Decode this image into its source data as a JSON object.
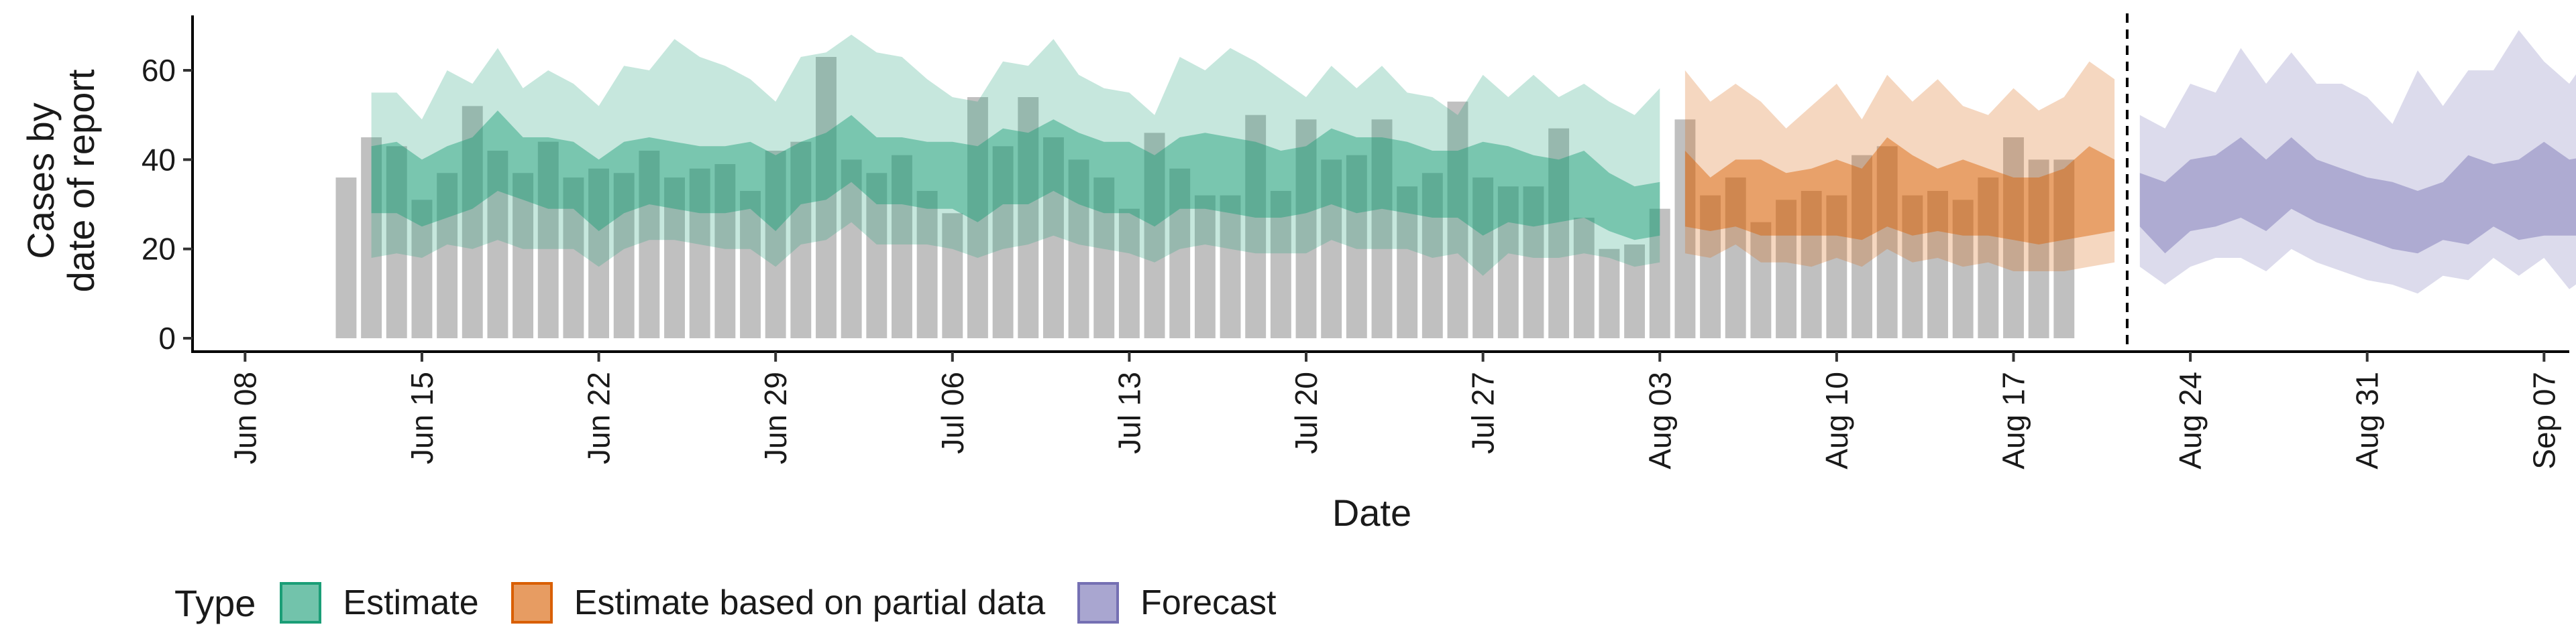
{
  "chart_data": {
    "type": "bar",
    "xlabel": "Date",
    "ylabel": [
      "Cases by",
      "date of report"
    ],
    "ylim": [
      0,
      72
    ],
    "yticks": [
      0,
      20,
      40,
      60
    ],
    "xlim": [
      "2020-06-06",
      "2020-09-08"
    ],
    "xticks": [
      "2020-06-08",
      "2020-06-15",
      "2020-06-22",
      "2020-06-29",
      "2020-07-06",
      "2020-07-13",
      "2020-07-20",
      "2020-07-27",
      "2020-08-03",
      "2020-08-10",
      "2020-08-17",
      "2020-08-24",
      "2020-08-31",
      "2020-09-07"
    ],
    "xtick_labels": [
      "Jun 08",
      "Jun 15",
      "Jun 22",
      "Jun 29",
      "Jul 06",
      "Jul 13",
      "Jul 20",
      "Jul 27",
      "Aug 03",
      "Aug 10",
      "Aug 17",
      "Aug 24",
      "Aug 31",
      "Sep 07"
    ],
    "grid": false,
    "vline_date": "2020-08-21",
    "bars": {
      "start_date": "2020-06-12",
      "values": [
        36,
        45,
        43,
        31,
        37,
        52,
        42,
        37,
        44,
        36,
        38,
        37,
        42,
        36,
        38,
        39,
        33,
        42,
        44,
        63,
        40,
        37,
        41,
        33,
        28,
        54,
        43,
        54,
        45,
        40,
        36,
        29,
        46,
        38,
        32,
        32,
        50,
        33,
        49,
        40,
        41,
        49,
        34,
        37,
        53,
        36,
        34,
        34,
        47,
        27,
        20,
        21,
        29,
        49,
        32,
        36,
        26,
        31,
        33,
        32,
        41,
        43,
        32,
        33,
        31,
        36,
        45,
        40,
        40
      ]
    },
    "series": [
      {
        "name": "Estimate",
        "color": "#1b9e77",
        "start_date": "2020-06-13",
        "median": [
          35,
          37,
          34,
          38,
          38,
          41,
          38,
          37,
          38,
          34,
          37,
          39,
          37,
          36,
          36,
          37,
          34,
          37,
          40,
          42,
          38,
          38,
          37,
          37,
          36,
          39,
          38,
          41,
          38,
          37,
          36,
          34,
          37,
          37,
          36,
          35,
          34,
          35,
          38,
          36,
          36,
          35,
          34,
          34,
          34,
          34,
          33,
          32,
          33,
          30,
          28,
          29
        ],
        "inner_low": [
          28,
          28,
          25,
          27,
          29,
          33,
          31,
          29,
          29,
          24,
          28,
          30,
          29,
          28,
          28,
          29,
          24,
          30,
          31,
          35,
          30,
          30,
          29,
          29,
          26,
          30,
          30,
          33,
          30,
          28,
          28,
          25,
          29,
          29,
          28,
          27,
          27,
          28,
          30,
          28,
          29,
          28,
          27,
          27,
          23,
          26,
          25,
          26,
          27,
          24,
          22,
          23
        ],
        "inner_high": [
          43,
          44,
          40,
          43,
          45,
          51,
          45,
          45,
          44,
          40,
          44,
          45,
          44,
          43,
          43,
          44,
          41,
          44,
          46,
          50,
          45,
          45,
          44,
          44,
          43,
          47,
          46,
          49,
          46,
          44,
          44,
          41,
          45,
          46,
          45,
          44,
          42,
          43,
          47,
          45,
          45,
          44,
          42,
          42,
          44,
          43,
          41,
          40,
          42,
          37,
          34,
          35
        ],
        "outer_low": [
          18,
          19,
          18,
          21,
          20,
          22,
          20,
          20,
          20,
          16,
          20,
          22,
          22,
          21,
          20,
          20,
          16,
          21,
          22,
          26,
          21,
          21,
          21,
          20,
          18,
          20,
          21,
          23,
          21,
          20,
          19,
          17,
          20,
          21,
          20,
          19,
          19,
          19,
          22,
          20,
          20,
          20,
          18,
          19,
          14,
          19,
          18,
          18,
          19,
          18,
          16,
          17
        ],
        "outer_high": [
          55,
          55,
          49,
          60,
          57,
          65,
          56,
          60,
          57,
          52,
          61,
          60,
          67,
          63,
          61,
          58,
          53,
          63,
          64,
          68,
          64,
          63,
          58,
          54,
          53,
          62,
          61,
          67,
          59,
          56,
          55,
          50,
          63,
          60,
          65,
          62,
          58,
          54,
          61,
          56,
          61,
          55,
          54,
          50,
          59,
          54,
          59,
          54,
          57,
          53,
          50,
          56
        ]
      },
      {
        "name": "Estimate based on partial data",
        "color": "#d95f02",
        "start_date": "2020-08-04",
        "median": [
          32,
          31,
          33,
          31,
          30,
          29,
          30,
          29,
          32,
          30,
          31,
          31,
          30,
          30,
          29,
          30,
          31,
          32
        ],
        "inner_low": [
          25,
          24,
          25,
          23,
          23,
          23,
          23,
          22,
          25,
          23,
          24,
          23,
          23,
          22,
          21,
          22,
          23,
          24
        ],
        "inner_high": [
          42,
          36,
          40,
          40,
          37,
          38,
          40,
          38,
          45,
          41,
          38,
          40,
          38,
          36,
          36,
          38,
          43,
          40
        ],
        "outer_low": [
          19,
          18,
          21,
          17,
          17,
          16,
          18,
          16,
          20,
          17,
          18,
          16,
          17,
          15,
          15,
          15,
          16,
          17
        ],
        "outer_high": [
          60,
          53,
          57,
          53,
          47,
          52,
          57,
          49,
          59,
          53,
          58,
          52,
          50,
          56,
          51,
          54,
          62,
          58
        ]
      },
      {
        "name": "Forecast",
        "color": "#7570b3",
        "start_date": "2020-08-22",
        "median": [
          31,
          28,
          30,
          30,
          33,
          31,
          35,
          33,
          30,
          29,
          27,
          25,
          26,
          28,
          30,
          28,
          29,
          32,
          32
        ],
        "inner_low": [
          25,
          19,
          24,
          25,
          27,
          24,
          29,
          26,
          24,
          22,
          20,
          19,
          22,
          21,
          25,
          22,
          23,
          23,
          23
        ],
        "inner_high": [
          37,
          35,
          40,
          41,
          45,
          40,
          45,
          40,
          38,
          36,
          35,
          33,
          35,
          41,
          39,
          40,
          44,
          40,
          41
        ],
        "outer_low": [
          16,
          12,
          16,
          18,
          18,
          15,
          20,
          17,
          15,
          13,
          12,
          10,
          14,
          13,
          18,
          14,
          18,
          11,
          15
        ],
        "outer_high": [
          50,
          47,
          57,
          55,
          65,
          57,
          64,
          57,
          57,
          54,
          48,
          60,
          52,
          60,
          60,
          69,
          62,
          57,
          65
        ]
      }
    ],
    "legend": {
      "title": "Type",
      "position": "bottom",
      "items": [
        {
          "label": "Estimate",
          "color": "#1b9e77"
        },
        {
          "label": "Estimate based on partial data",
          "color": "#d95f02"
        },
        {
          "label": "Forecast",
          "color": "#7570b3"
        }
      ]
    }
  }
}
